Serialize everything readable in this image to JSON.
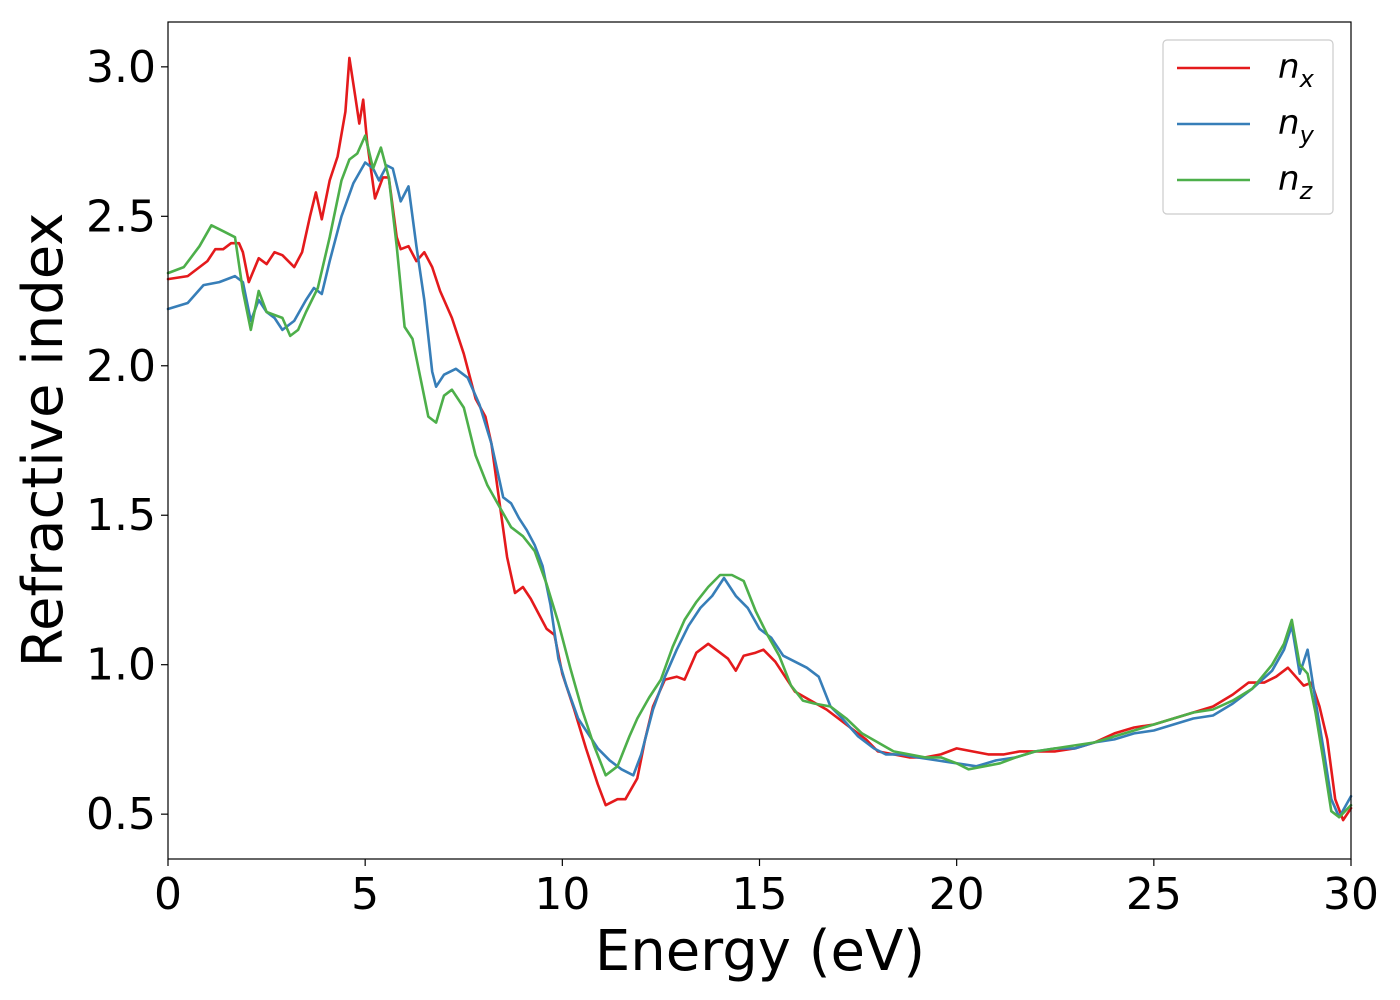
{
  "chart_data": {
    "type": "line",
    "title": "",
    "xlabel": "Energy (eV)",
    "ylabel": "Refractive index",
    "xlim": [
      0,
      30
    ],
    "ylim": [
      0.35,
      3.15
    ],
    "xticks": [
      0,
      5,
      10,
      15,
      20,
      25,
      30
    ],
    "xtick_labels": [
      "0",
      "5",
      "10",
      "15",
      "20",
      "25",
      "30"
    ],
    "yticks": [
      0.5,
      1.0,
      1.5,
      2.0,
      2.5,
      3.0
    ],
    "ytick_labels": [
      "0.5",
      "1.0",
      "1.5",
      "2.0",
      "2.5",
      "3.0"
    ],
    "grid": false,
    "legend_position": "top-right",
    "series": [
      {
        "name": "n_x",
        "label_base": "n",
        "label_sub": "x",
        "color": "#e41a1c",
        "points": [
          [
            0,
            2.29
          ],
          [
            0.5,
            2.3
          ],
          [
            1,
            2.35
          ],
          [
            1.2,
            2.39
          ],
          [
            1.4,
            2.39
          ],
          [
            1.6,
            2.41
          ],
          [
            1.8,
            2.41
          ],
          [
            1.9,
            2.38
          ],
          [
            2.05,
            2.28
          ],
          [
            2.3,
            2.36
          ],
          [
            2.5,
            2.34
          ],
          [
            2.7,
            2.38
          ],
          [
            2.9,
            2.37
          ],
          [
            3.2,
            2.33
          ],
          [
            3.4,
            2.38
          ],
          [
            3.6,
            2.5
          ],
          [
            3.75,
            2.58
          ],
          [
            3.9,
            2.49
          ],
          [
            4.1,
            2.62
          ],
          [
            4.3,
            2.7
          ],
          [
            4.5,
            2.85
          ],
          [
            4.6,
            3.03
          ],
          [
            4.75,
            2.9
          ],
          [
            4.85,
            2.81
          ],
          [
            4.95,
            2.89
          ],
          [
            5.05,
            2.75
          ],
          [
            5.25,
            2.56
          ],
          [
            5.45,
            2.63
          ],
          [
            5.6,
            2.63
          ],
          [
            5.8,
            2.43
          ],
          [
            5.9,
            2.39
          ],
          [
            6.1,
            2.4
          ],
          [
            6.3,
            2.35
          ],
          [
            6.5,
            2.38
          ],
          [
            6.7,
            2.33
          ],
          [
            6.9,
            2.25
          ],
          [
            7.2,
            2.16
          ],
          [
            7.5,
            2.04
          ],
          [
            7.8,
            1.89
          ],
          [
            8.05,
            1.83
          ],
          [
            8.2,
            1.74
          ],
          [
            8.4,
            1.55
          ],
          [
            8.6,
            1.36
          ],
          [
            8.8,
            1.24
          ],
          [
            9.0,
            1.26
          ],
          [
            9.2,
            1.22
          ],
          [
            9.4,
            1.17
          ],
          [
            9.6,
            1.12
          ],
          [
            9.8,
            1.1
          ],
          [
            10.0,
            0.97
          ],
          [
            10.3,
            0.85
          ],
          [
            10.6,
            0.72
          ],
          [
            10.9,
            0.6
          ],
          [
            11.1,
            0.53
          ],
          [
            11.4,
            0.55
          ],
          [
            11.6,
            0.55
          ],
          [
            11.9,
            0.62
          ],
          [
            12.1,
            0.75
          ],
          [
            12.3,
            0.86
          ],
          [
            12.6,
            0.95
          ],
          [
            12.9,
            0.96
          ],
          [
            13.1,
            0.95
          ],
          [
            13.4,
            1.04
          ],
          [
            13.7,
            1.07
          ],
          [
            14.0,
            1.04
          ],
          [
            14.2,
            1.02
          ],
          [
            14.4,
            0.98
          ],
          [
            14.6,
            1.03
          ],
          [
            14.9,
            1.04
          ],
          [
            15.1,
            1.05
          ],
          [
            15.4,
            1.01
          ],
          [
            15.7,
            0.95
          ],
          [
            15.9,
            0.91
          ],
          [
            16.3,
            0.88
          ],
          [
            16.7,
            0.85
          ],
          [
            17.0,
            0.82
          ],
          [
            17.3,
            0.79
          ],
          [
            17.7,
            0.75
          ],
          [
            18.0,
            0.71
          ],
          [
            18.4,
            0.7
          ],
          [
            18.8,
            0.69
          ],
          [
            19.2,
            0.69
          ],
          [
            19.6,
            0.7
          ],
          [
            20.0,
            0.72
          ],
          [
            20.4,
            0.71
          ],
          [
            20.8,
            0.7
          ],
          [
            21.2,
            0.7
          ],
          [
            21.6,
            0.71
          ],
          [
            22.0,
            0.71
          ],
          [
            22.5,
            0.71
          ],
          [
            23.0,
            0.72
          ],
          [
            23.5,
            0.74
          ],
          [
            24.0,
            0.77
          ],
          [
            24.5,
            0.79
          ],
          [
            25.0,
            0.8
          ],
          [
            25.5,
            0.82
          ],
          [
            26.0,
            0.84
          ],
          [
            26.5,
            0.86
          ],
          [
            27.0,
            0.9
          ],
          [
            27.4,
            0.94
          ],
          [
            27.8,
            0.94
          ],
          [
            28.1,
            0.96
          ],
          [
            28.4,
            0.99
          ],
          [
            28.6,
            0.96
          ],
          [
            28.8,
            0.93
          ],
          [
            29.0,
            0.94
          ],
          [
            29.2,
            0.86
          ],
          [
            29.4,
            0.75
          ],
          [
            29.6,
            0.55
          ],
          [
            29.8,
            0.48
          ],
          [
            30,
            0.52
          ]
        ]
      },
      {
        "name": "n_y",
        "label_base": "n",
        "label_sub": "y",
        "color": "#377eb8",
        "points": [
          [
            0,
            2.19
          ],
          [
            0.5,
            2.21
          ],
          [
            0.9,
            2.27
          ],
          [
            1.3,
            2.28
          ],
          [
            1.7,
            2.3
          ],
          [
            1.9,
            2.28
          ],
          [
            2.1,
            2.15
          ],
          [
            2.3,
            2.22
          ],
          [
            2.5,
            2.18
          ],
          [
            2.7,
            2.16
          ],
          [
            2.9,
            2.12
          ],
          [
            3.2,
            2.15
          ],
          [
            3.5,
            2.22
          ],
          [
            3.7,
            2.26
          ],
          [
            3.9,
            2.24
          ],
          [
            4.1,
            2.35
          ],
          [
            4.4,
            2.5
          ],
          [
            4.7,
            2.61
          ],
          [
            5.0,
            2.68
          ],
          [
            5.2,
            2.66
          ],
          [
            5.35,
            2.62
          ],
          [
            5.55,
            2.67
          ],
          [
            5.7,
            2.66
          ],
          [
            5.9,
            2.55
          ],
          [
            6.1,
            2.6
          ],
          [
            6.3,
            2.4
          ],
          [
            6.5,
            2.22
          ],
          [
            6.7,
            1.98
          ],
          [
            6.8,
            1.93
          ],
          [
            7.0,
            1.97
          ],
          [
            7.3,
            1.99
          ],
          [
            7.6,
            1.96
          ],
          [
            7.9,
            1.87
          ],
          [
            8.2,
            1.74
          ],
          [
            8.5,
            1.56
          ],
          [
            8.7,
            1.54
          ],
          [
            8.9,
            1.49
          ],
          [
            9.1,
            1.45
          ],
          [
            9.3,
            1.4
          ],
          [
            9.5,
            1.33
          ],
          [
            9.7,
            1.2
          ],
          [
            9.9,
            1.02
          ],
          [
            10.1,
            0.93
          ],
          [
            10.4,
            0.82
          ],
          [
            10.7,
            0.76
          ],
          [
            10.9,
            0.72
          ],
          [
            11.2,
            0.68
          ],
          [
            11.5,
            0.65
          ],
          [
            11.8,
            0.63
          ],
          [
            12.0,
            0.7
          ],
          [
            12.3,
            0.85
          ],
          [
            12.6,
            0.96
          ],
          [
            12.9,
            1.05
          ],
          [
            13.2,
            1.13
          ],
          [
            13.5,
            1.19
          ],
          [
            13.8,
            1.23
          ],
          [
            14.1,
            1.29
          ],
          [
            14.4,
            1.23
          ],
          [
            14.7,
            1.19
          ],
          [
            15.0,
            1.12
          ],
          [
            15.3,
            1.09
          ],
          [
            15.6,
            1.03
          ],
          [
            15.9,
            1.01
          ],
          [
            16.2,
            0.99
          ],
          [
            16.5,
            0.96
          ],
          [
            16.8,
            0.86
          ],
          [
            17.1,
            0.82
          ],
          [
            17.5,
            0.76
          ],
          [
            17.9,
            0.72
          ],
          [
            18.2,
            0.7
          ],
          [
            18.6,
            0.7
          ],
          [
            19.0,
            0.69
          ],
          [
            19.5,
            0.68
          ],
          [
            20.0,
            0.67
          ],
          [
            20.5,
            0.66
          ],
          [
            21.0,
            0.68
          ],
          [
            21.5,
            0.69
          ],
          [
            22.0,
            0.71
          ],
          [
            22.5,
            0.72
          ],
          [
            23.0,
            0.72
          ],
          [
            23.5,
            0.74
          ],
          [
            24.0,
            0.75
          ],
          [
            24.5,
            0.77
          ],
          [
            25.0,
            0.78
          ],
          [
            25.5,
            0.8
          ],
          [
            26.0,
            0.82
          ],
          [
            26.5,
            0.83
          ],
          [
            27.0,
            0.87
          ],
          [
            27.5,
            0.92
          ],
          [
            28.0,
            0.98
          ],
          [
            28.3,
            1.05
          ],
          [
            28.5,
            1.13
          ],
          [
            28.7,
            0.97
          ],
          [
            28.9,
            1.05
          ],
          [
            29.1,
            0.88
          ],
          [
            29.3,
            0.72
          ],
          [
            29.5,
            0.55
          ],
          [
            29.7,
            0.49
          ],
          [
            30,
            0.56
          ]
        ]
      },
      {
        "name": "n_z",
        "label_base": "n",
        "label_sub": "z",
        "color": "#4daf4a",
        "points": [
          [
            0,
            2.31
          ],
          [
            0.4,
            2.33
          ],
          [
            0.8,
            2.4
          ],
          [
            1.1,
            2.47
          ],
          [
            1.4,
            2.45
          ],
          [
            1.7,
            2.43
          ],
          [
            1.9,
            2.25
          ],
          [
            2.1,
            2.12
          ],
          [
            2.3,
            2.25
          ],
          [
            2.5,
            2.18
          ],
          [
            2.7,
            2.17
          ],
          [
            2.9,
            2.16
          ],
          [
            3.1,
            2.1
          ],
          [
            3.3,
            2.12
          ],
          [
            3.5,
            2.18
          ],
          [
            3.8,
            2.26
          ],
          [
            4.1,
            2.43
          ],
          [
            4.4,
            2.62
          ],
          [
            4.6,
            2.69
          ],
          [
            4.8,
            2.71
          ],
          [
            5.0,
            2.77
          ],
          [
            5.2,
            2.66
          ],
          [
            5.4,
            2.73
          ],
          [
            5.6,
            2.63
          ],
          [
            5.8,
            2.4
          ],
          [
            6.0,
            2.13
          ],
          [
            6.2,
            2.09
          ],
          [
            6.4,
            1.96
          ],
          [
            6.6,
            1.83
          ],
          [
            6.8,
            1.81
          ],
          [
            7.0,
            1.9
          ],
          [
            7.2,
            1.92
          ],
          [
            7.5,
            1.86
          ],
          [
            7.8,
            1.7
          ],
          [
            8.1,
            1.6
          ],
          [
            8.4,
            1.53
          ],
          [
            8.7,
            1.46
          ],
          [
            9.0,
            1.43
          ],
          [
            9.3,
            1.38
          ],
          [
            9.6,
            1.27
          ],
          [
            9.9,
            1.14
          ],
          [
            10.2,
            0.99
          ],
          [
            10.5,
            0.85
          ],
          [
            10.8,
            0.73
          ],
          [
            11.1,
            0.63
          ],
          [
            11.4,
            0.66
          ],
          [
            11.7,
            0.76
          ],
          [
            11.9,
            0.82
          ],
          [
            12.2,
            0.89
          ],
          [
            12.5,
            0.95
          ],
          [
            12.8,
            1.06
          ],
          [
            13.1,
            1.15
          ],
          [
            13.4,
            1.21
          ],
          [
            13.7,
            1.26
          ],
          [
            14.0,
            1.3
          ],
          [
            14.3,
            1.3
          ],
          [
            14.6,
            1.28
          ],
          [
            14.9,
            1.18
          ],
          [
            15.2,
            1.1
          ],
          [
            15.5,
            1.03
          ],
          [
            15.8,
            0.93
          ],
          [
            16.1,
            0.88
          ],
          [
            16.4,
            0.87
          ],
          [
            16.8,
            0.86
          ],
          [
            17.2,
            0.82
          ],
          [
            17.6,
            0.77
          ],
          [
            18.0,
            0.74
          ],
          [
            18.4,
            0.71
          ],
          [
            18.8,
            0.7
          ],
          [
            19.2,
            0.69
          ],
          [
            19.6,
            0.69
          ],
          [
            20.0,
            0.67
          ],
          [
            20.3,
            0.65
          ],
          [
            20.7,
            0.66
          ],
          [
            21.1,
            0.67
          ],
          [
            21.5,
            0.69
          ],
          [
            22.0,
            0.71
          ],
          [
            22.5,
            0.72
          ],
          [
            23.0,
            0.73
          ],
          [
            23.5,
            0.74
          ],
          [
            24.0,
            0.76
          ],
          [
            24.5,
            0.78
          ],
          [
            25.0,
            0.8
          ],
          [
            25.5,
            0.82
          ],
          [
            26.0,
            0.84
          ],
          [
            26.5,
            0.85
          ],
          [
            27.0,
            0.88
          ],
          [
            27.5,
            0.92
          ],
          [
            28.0,
            1.0
          ],
          [
            28.3,
            1.07
          ],
          [
            28.5,
            1.15
          ],
          [
            28.7,
            1.0
          ],
          [
            28.9,
            0.97
          ],
          [
            29.1,
            0.84
          ],
          [
            29.3,
            0.68
          ],
          [
            29.5,
            0.51
          ],
          [
            29.7,
            0.49
          ],
          [
            30,
            0.53
          ]
        ]
      }
    ]
  }
}
